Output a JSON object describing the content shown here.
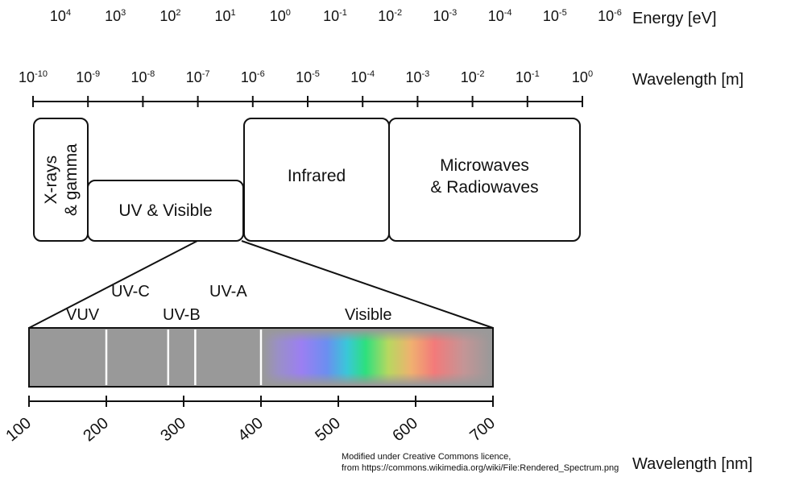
{
  "energy_axis": {
    "title": "Energy [eV]",
    "ticks": [
      {
        "base": "10",
        "exp": "4"
      },
      {
        "base": "10",
        "exp": "3"
      },
      {
        "base": "10",
        "exp": "2"
      },
      {
        "base": "10",
        "exp": "1"
      },
      {
        "base": "10",
        "exp": "0"
      },
      {
        "base": "10",
        "exp": "-1"
      },
      {
        "base": "10",
        "exp": "-2"
      },
      {
        "base": "10",
        "exp": "-3"
      },
      {
        "base": "10",
        "exp": "-4"
      },
      {
        "base": "10",
        "exp": "-5"
      },
      {
        "base": "10",
        "exp": "-6"
      }
    ]
  },
  "wavelength_axis": {
    "title": "Wavelength [m]",
    "ticks": [
      {
        "base": "10",
        "exp": "-10"
      },
      {
        "base": "10",
        "exp": "-9"
      },
      {
        "base": "10",
        "exp": "-8"
      },
      {
        "base": "10",
        "exp": "-7"
      },
      {
        "base": "10",
        "exp": "-6"
      },
      {
        "base": "10",
        "exp": "-5"
      },
      {
        "base": "10",
        "exp": "-4"
      },
      {
        "base": "10",
        "exp": "-3"
      },
      {
        "base": "10",
        "exp": "-2"
      },
      {
        "base": "10",
        "exp": "-1"
      },
      {
        "base": "10",
        "exp": "0"
      }
    ]
  },
  "regions": {
    "xray": {
      "line1": "X-rays",
      "line2": "& gamma"
    },
    "uv_visible": "UV & Visible",
    "infrared": "Infrared",
    "microwave": {
      "line1": "Microwaves",
      "line2": "& Radiowaves"
    }
  },
  "bands": {
    "vuv": "VUV",
    "uvc": "UV-C",
    "uvb": "UV-B",
    "uva": "UV-A",
    "visible": "Visible"
  },
  "nm_axis": {
    "title": "Wavelength [nm]",
    "ticks": [
      "100",
      "200",
      "300",
      "400",
      "500",
      "600",
      "700"
    ],
    "band_boundaries_nm": [
      200,
      280,
      315,
      400
    ]
  },
  "credit": {
    "line1": "Modified under Creative Commons licence,",
    "line2": "from https://commons.wikimedia.org/wiki/File:Rendered_Spectrum.png"
  },
  "colors": {
    "line": "#111111",
    "strip": "#999999"
  }
}
